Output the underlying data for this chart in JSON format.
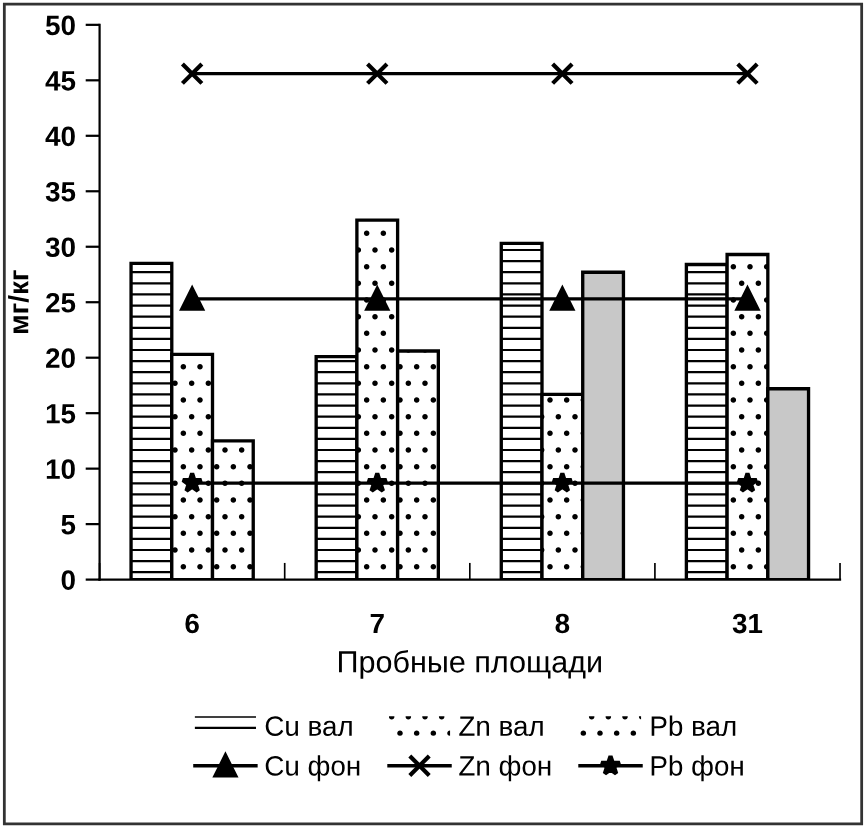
{
  "chart_data": {
    "type": "bar",
    "xlabel": "Пробные площади",
    "ylabel": "мг/кг",
    "categories": [
      "6",
      "7",
      "8",
      "31"
    ],
    "series": [
      {
        "name": "Cu вал",
        "type": "bar",
        "color": "#000000",
        "values": [
          28.5,
          20.1,
          30.3,
          28.4
        ]
      },
      {
        "name": "Zn вал",
        "type": "bar",
        "color": "#000000",
        "values": [
          20.3,
          32.4,
          16.7,
          29.3
        ]
      },
      {
        "name": "Pb вал",
        "type": "bar",
        "color": "#000000",
        "colors": [
          "#000000",
          "#000000",
          "#c8c8c8",
          "#c8c8c8"
        ],
        "values": [
          12.5,
          20.6,
          27.7,
          17.2
        ]
      },
      {
        "name": "Cu фон",
        "type": "line",
        "color": "#000000",
        "marker": "triangle",
        "values": [
          25.3,
          25.3,
          25.3,
          25.3
        ]
      },
      {
        "name": "Zn фон",
        "type": "line",
        "color": "#000000",
        "marker": "cross",
        "values": [
          45.6,
          45.6,
          45.6,
          45.6
        ]
      },
      {
        "name": "Pb фон",
        "type": "line",
        "color": "#000000",
        "marker": "star",
        "values": [
          8.7,
          8.7,
          8.7,
          8.7
        ]
      }
    ],
    "ylim": [
      0,
      50
    ],
    "yticks": [
      0,
      5,
      10,
      15,
      20,
      25,
      30,
      35,
      40,
      45,
      50
    ],
    "grid": false,
    "legend": "bottom"
  }
}
